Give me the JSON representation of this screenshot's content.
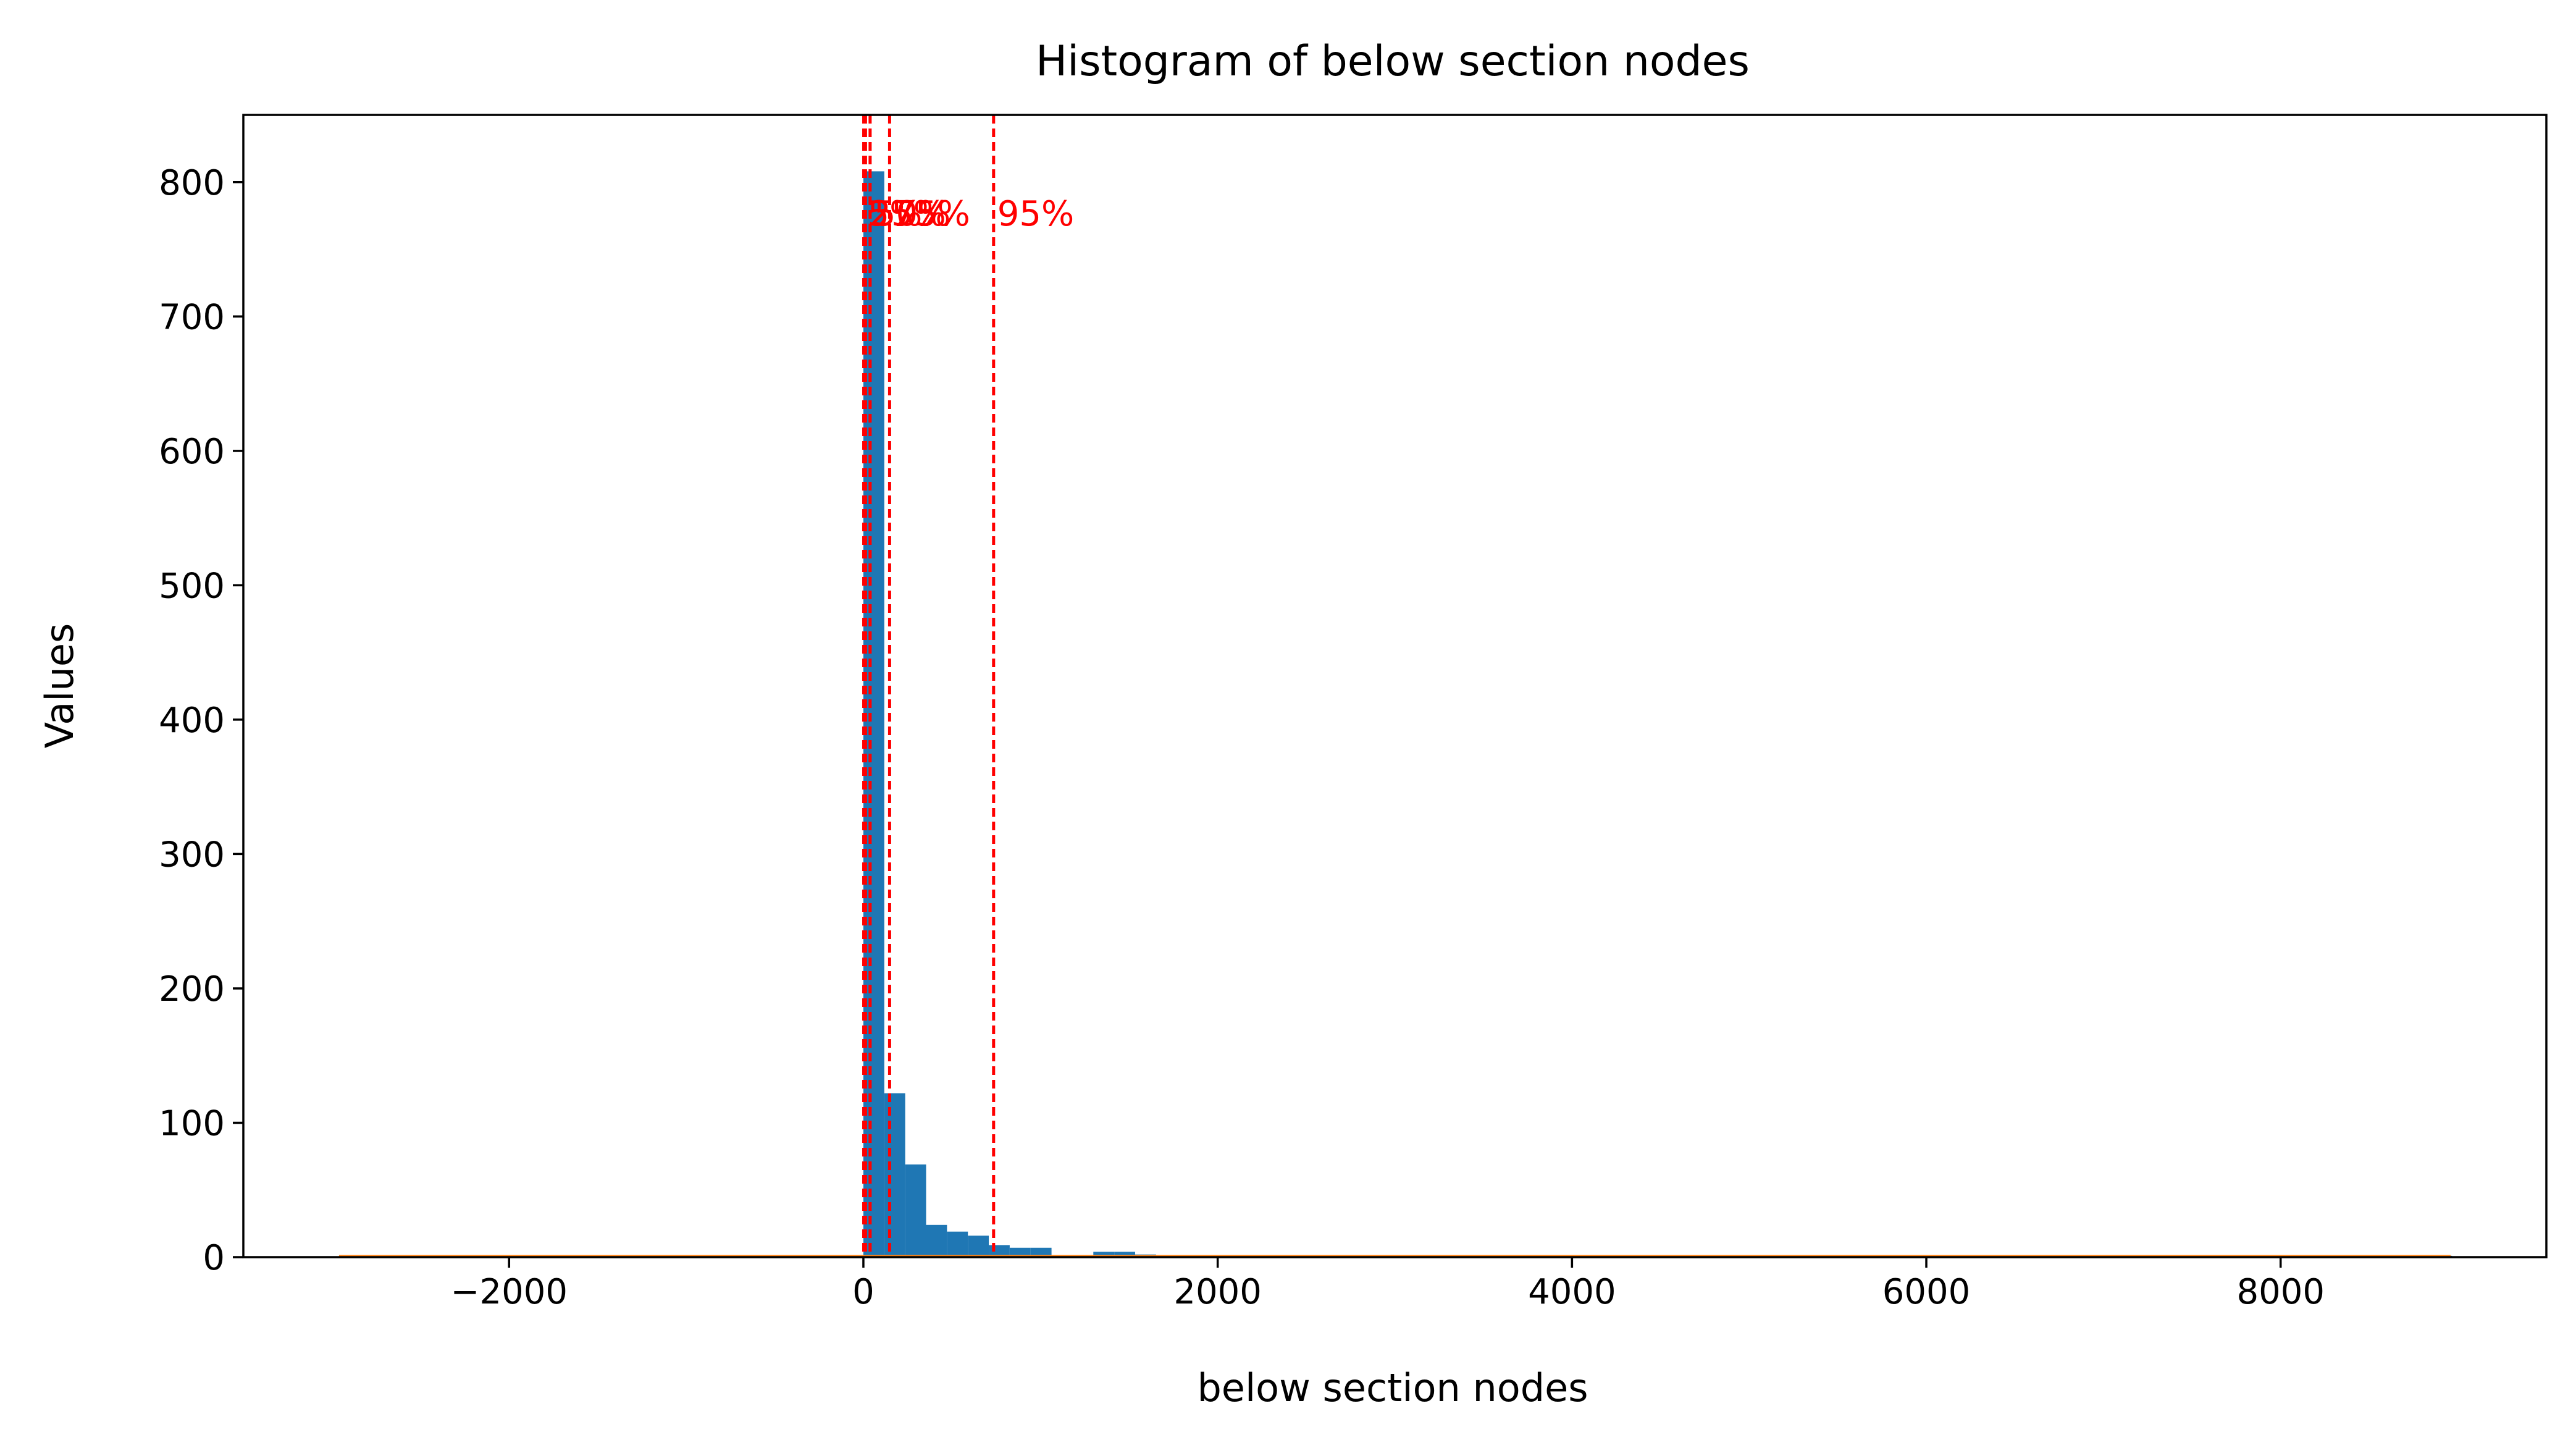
{
  "chart_data": {
    "type": "bar",
    "title": "Histogram of below section nodes",
    "xlabel": "below section nodes",
    "ylabel": "Values",
    "xlim": [
      -3500,
      9500
    ],
    "ylim": [
      0,
      850
    ],
    "x_ticks": [
      -2000,
      0,
      2000,
      4000,
      6000,
      8000
    ],
    "x_tick_labels": [
      "−2000",
      "0",
      "2000",
      "4000",
      "6000",
      "8000"
    ],
    "y_ticks": [
      0,
      100,
      200,
      300,
      400,
      500,
      600,
      700,
      800
    ],
    "y_tick_labels": [
      "0",
      "100",
      "200",
      "300",
      "400",
      "500",
      "600",
      "700",
      "800"
    ],
    "grid": false,
    "bar_color": "#1f77b4",
    "bins": [
      {
        "start": 0,
        "end": 118,
        "count": 808
      },
      {
        "start": 118,
        "end": 236,
        "count": 122
      },
      {
        "start": 236,
        "end": 354,
        "count": 69
      },
      {
        "start": 354,
        "end": 472,
        "count": 24
      },
      {
        "start": 472,
        "end": 590,
        "count": 19
      },
      {
        "start": 590,
        "end": 708,
        "count": 16
      },
      {
        "start": 708,
        "end": 826,
        "count": 9
      },
      {
        "start": 826,
        "end": 944,
        "count": 7
      },
      {
        "start": 944,
        "end": 1062,
        "count": 7
      },
      {
        "start": 1062,
        "end": 1180,
        "count": 1
      },
      {
        "start": 1180,
        "end": 1298,
        "count": 1
      },
      {
        "start": 1298,
        "end": 1416,
        "count": 4
      },
      {
        "start": 1416,
        "end": 1534,
        "count": 4
      },
      {
        "start": 1534,
        "end": 1652,
        "count": 2
      },
      {
        "start": 1652,
        "end": 1770,
        "count": 1
      },
      {
        "start": 1770,
        "end": 1888,
        "count": 1
      },
      {
        "start": 1888,
        "end": 2006,
        "count": 1
      },
      {
        "start": 2006,
        "end": 2124,
        "count": 1
      },
      {
        "start": 2124,
        "end": 2360,
        "count": 1
      },
      {
        "start": 2360,
        "end": 2832,
        "count": 1
      },
      {
        "start": 2832,
        "end": 3540,
        "count": 1
      },
      {
        "start": 3540,
        "end": 4720,
        "count": 1
      },
      {
        "start": 4720,
        "end": 5900,
        "count": 1
      },
      {
        "start": 5900,
        "end": 7080,
        "count": 1
      },
      {
        "start": 7080,
        "end": 8968,
        "count": 1
      }
    ],
    "density_line": {
      "color": "#ff7f0e",
      "x_range": [
        -2960,
        8960
      ],
      "y": 0
    },
    "percentile_lines": {
      "color": "#ff0000",
      "style": "dashed",
      "items": [
        {
          "label": "5%",
          "x": 2
        },
        {
          "label": "25%",
          "x": 12
        },
        {
          "label": "50%",
          "x": 38
        },
        {
          "label": "75%",
          "x": 148
        },
        {
          "label": "95%",
          "x": 735
        }
      ]
    }
  }
}
